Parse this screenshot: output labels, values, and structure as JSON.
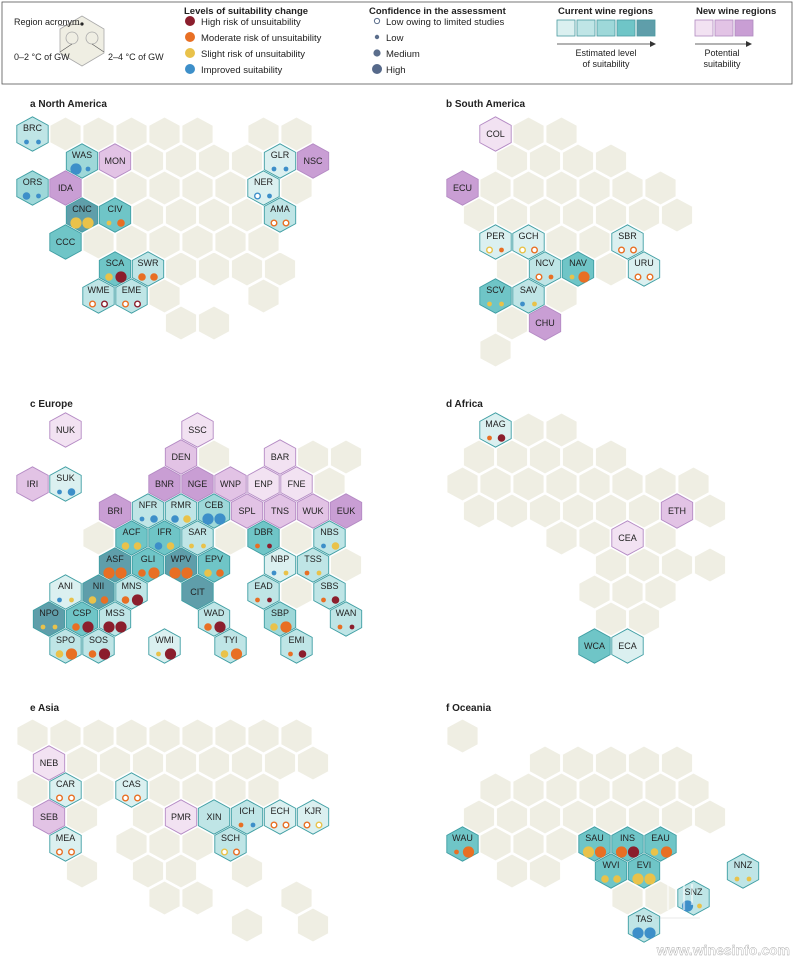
{
  "legend": {
    "region_acronym": "Region acronym",
    "gw_low": "0–2 °C of GW",
    "gw_high": "2–4 °C of GW",
    "suitability_title": "Levels of suitability change",
    "suitability_items": [
      {
        "label": "High risk of unsuitability",
        "color": "#8b1e2d"
      },
      {
        "label": "Moderate risk of unsuitability",
        "color": "#e86f24"
      },
      {
        "label": "Slight risk of unsuitability",
        "color": "#e9c24a"
      },
      {
        "label": "Improved suitability",
        "color": "#3d8fc9"
      }
    ],
    "confidence_title": "Confidence in the assessment",
    "confidence_items": [
      {
        "label": "Low owing to limited studies"
      },
      {
        "label": "Low"
      },
      {
        "label": "Medium"
      },
      {
        "label": "High"
      }
    ],
    "current_title": "Current wine regions",
    "current_caption": "Estimated level of suitability",
    "new_title": "New wine regions",
    "new_caption": "Potential suitability"
  },
  "colors": {
    "background_hex": "#efeee3",
    "current_levels": [
      "#dbf0f0",
      "#bfe5e6",
      "#9ed8d9",
      "#6fc5c7",
      "#5f9eaa"
    ],
    "new_levels": [
      "#f2e2f2",
      "#e2c3e5",
      "#c99ed4"
    ]
  },
  "panels": [
    {
      "letter": "a",
      "title": "North America"
    },
    {
      "letter": "b",
      "title": "South America"
    },
    {
      "letter": "c",
      "title": "Europe"
    },
    {
      "letter": "d",
      "title": "Africa"
    },
    {
      "letter": "e",
      "title": "Asia"
    },
    {
      "letter": "f",
      "title": "Oceania"
    }
  ],
  "regions": [
    {
      "panel": 0,
      "code": "BRC",
      "level": "c2",
      "d1": "blue",
      "d2": "blue",
      "c1": "low",
      "c2": "low"
    },
    {
      "panel": 0,
      "code": "WAS",
      "level": "c3",
      "d1": "blue",
      "d2": "blue",
      "c1": "high",
      "c2": "low"
    },
    {
      "panel": 0,
      "code": "MON",
      "level": "n2"
    },
    {
      "panel": 0,
      "code": "ORS",
      "level": "c3",
      "d1": "blue",
      "d2": "blue",
      "c1": "medium",
      "c2": "low"
    },
    {
      "panel": 0,
      "code": "IDA",
      "level": "n3"
    },
    {
      "panel": 0,
      "code": "CNC",
      "level": "c5",
      "d1": "yellow",
      "d2": "yellow",
      "c1": "high",
      "c2": "high"
    },
    {
      "panel": 0,
      "code": "CIV",
      "level": "c4",
      "d1": "yellow",
      "d2": "orange",
      "c1": "low",
      "c2": "medium"
    },
    {
      "panel": 0,
      "code": "CCC",
      "level": "c4"
    },
    {
      "panel": 0,
      "code": "SCA",
      "level": "c4",
      "d1": "yellow",
      "d2": "darkred",
      "c1": "medium",
      "c2": "high"
    },
    {
      "panel": 0,
      "code": "SWR",
      "level": "c2",
      "d1": "orange",
      "d2": "orange",
      "c1": "medium",
      "c2": "medium"
    },
    {
      "panel": 0,
      "code": "WME",
      "level": "c2",
      "d1": "orange",
      "d2": "darkred",
      "c1": "lim",
      "c2": "lim"
    },
    {
      "panel": 0,
      "code": "EME",
      "level": "c2",
      "d1": "orange",
      "d2": "darkred",
      "c1": "lim",
      "c2": "lim"
    },
    {
      "panel": 0,
      "code": "GLR",
      "level": "c1",
      "d1": "blue",
      "d2": "blue",
      "c1": "low",
      "c2": "low"
    },
    {
      "panel": 0,
      "code": "NSC",
      "level": "n3"
    },
    {
      "panel": 0,
      "code": "NER",
      "level": "c1",
      "d1": "blue",
      "d2": "blue",
      "c1": "lim",
      "c2": "low"
    },
    {
      "panel": 0,
      "code": "AMA",
      "level": "c2",
      "d1": "orange",
      "d2": "orange",
      "c1": "lim",
      "c2": "lim"
    },
    {
      "panel": 1,
      "code": "COL",
      "level": "n1"
    },
    {
      "panel": 1,
      "code": "ECU",
      "level": "n3"
    },
    {
      "panel": 1,
      "code": "PER",
      "level": "c1",
      "d1": "yellow",
      "d2": "orange",
      "c1": "lim",
      "c2": "low"
    },
    {
      "panel": 1,
      "code": "GCH",
      "level": "c1",
      "d1": "yellow",
      "d2": "orange",
      "c1": "lim",
      "c2": "lim"
    },
    {
      "panel": 1,
      "code": "SBR",
      "level": "c1",
      "d1": "orange",
      "d2": "orange",
      "c1": "lim",
      "c2": "lim"
    },
    {
      "panel": 1,
      "code": "NCV",
      "level": "c2",
      "d1": "orange",
      "d2": "orange",
      "c1": "lim",
      "c2": "low"
    },
    {
      "panel": 1,
      "code": "NAV",
      "level": "c4",
      "d1": "yellow",
      "d2": "orange",
      "c1": "low",
      "c2": "high"
    },
    {
      "panel": 1,
      "code": "URU",
      "level": "c1",
      "d1": "orange",
      "d2": "orange",
      "c1": "lim",
      "c2": "lim"
    },
    {
      "panel": 1,
      "code": "SCV",
      "level": "c4",
      "d1": "yellow",
      "d2": "yellow",
      "c1": "low",
      "c2": "low"
    },
    {
      "panel": 1,
      "code": "SAV",
      "level": "c2",
      "d1": "blue",
      "d2": "yellow",
      "c1": "low",
      "c2": "low"
    },
    {
      "panel": 1,
      "code": "CHU",
      "level": "n3"
    },
    {
      "panel": 2,
      "code": "NUK",
      "level": "n1"
    },
    {
      "panel": 2,
      "code": "SSC",
      "level": "n1"
    },
    {
      "panel": 2,
      "code": "DEN",
      "level": "n2"
    },
    {
      "panel": 2,
      "code": "BAR",
      "level": "n1"
    },
    {
      "panel": 2,
      "code": "IRI",
      "level": "n2"
    },
    {
      "panel": 2,
      "code": "SUK",
      "level": "c1",
      "d1": "blue",
      "d2": "blue",
      "c1": "low",
      "c2": "medium"
    },
    {
      "panel": 2,
      "code": "BNR",
      "level": "n3"
    },
    {
      "panel": 2,
      "code": "NGE",
      "level": "n3"
    },
    {
      "panel": 2,
      "code": "WNP",
      "level": "n2"
    },
    {
      "panel": 2,
      "code": "ENP",
      "level": "n1"
    },
    {
      "panel": 2,
      "code": "FNE",
      "level": "n1"
    },
    {
      "panel": 2,
      "code": "BRI",
      "level": "n3"
    },
    {
      "panel": 2,
      "code": "NFR",
      "level": "c2",
      "d1": "blue",
      "d2": "blue",
      "c1": "low",
      "c2": "medium"
    },
    {
      "panel": 2,
      "code": "RMR",
      "level": "c2",
      "d1": "blue",
      "d2": "yellow",
      "c1": "medium",
      "c2": "medium"
    },
    {
      "panel": 2,
      "code": "CEB",
      "level": "c3",
      "d1": "blue",
      "d2": "blue",
      "c1": "high",
      "c2": "high"
    },
    {
      "panel": 2,
      "code": "SPL",
      "level": "n2"
    },
    {
      "panel": 2,
      "code": "TNS",
      "level": "n2"
    },
    {
      "panel": 2,
      "code": "WUK",
      "level": "n2"
    },
    {
      "panel": 2,
      "code": "EUK",
      "level": "n3"
    },
    {
      "panel": 2,
      "code": "ACF",
      "level": "c4",
      "d1": "yellow",
      "d2": "yellow",
      "c1": "medium",
      "c2": "medium"
    },
    {
      "panel": 2,
      "code": "IFR",
      "level": "c4",
      "d1": "blue",
      "d2": "yellow",
      "c1": "medium",
      "c2": "medium"
    },
    {
      "panel": 2,
      "code": "SAR",
      "level": "c2",
      "d1": "yellow",
      "d2": "yellow",
      "c1": "low",
      "c2": "low"
    },
    {
      "panel": 2,
      "code": "DBR",
      "level": "c4",
      "d1": "orange",
      "d2": "darkred",
      "c1": "low",
      "c2": "low"
    },
    {
      "panel": 2,
      "code": "NBS",
      "level": "c2",
      "d1": "blue",
      "d2": "yellow",
      "c1": "low",
      "c2": "medium"
    },
    {
      "panel": 2,
      "code": "ASF",
      "level": "c5",
      "d1": "orange",
      "d2": "orange",
      "c1": "high",
      "c2": "high"
    },
    {
      "panel": 2,
      "code": "GLI",
      "level": "c4",
      "d1": "orange",
      "d2": "orange",
      "c1": "medium",
      "c2": "high"
    },
    {
      "panel": 2,
      "code": "WPV",
      "level": "c5",
      "d1": "orange",
      "d2": "orange",
      "c1": "high",
      "c2": "high"
    },
    {
      "panel": 2,
      "code": "EPV",
      "level": "c4",
      "d1": "yellow",
      "d2": "orange",
      "c1": "medium",
      "c2": "medium"
    },
    {
      "panel": 2,
      "code": "NBP",
      "level": "c1",
      "d1": "blue",
      "d2": "yellow",
      "c1": "low",
      "c2": "low"
    },
    {
      "panel": 2,
      "code": "TSS",
      "level": "c2",
      "d1": "orange",
      "d2": "yellow",
      "c1": "low",
      "c2": "low"
    },
    {
      "panel": 2,
      "code": "ANI",
      "level": "c1",
      "d1": "blue",
      "d2": "yellow",
      "c1": "low",
      "c2": "low"
    },
    {
      "panel": 2,
      "code": "NII",
      "level": "c5",
      "d1": "yellow",
      "d2": "orange",
      "c1": "medium",
      "c2": "medium"
    },
    {
      "panel": 2,
      "code": "MNS",
      "level": "c2",
      "d1": "orange",
      "d2": "darkred",
      "c1": "medium",
      "c2": "high"
    },
    {
      "panel": 2,
      "code": "CIT",
      "level": "c5"
    },
    {
      "panel": 2,
      "code": "EAD",
      "level": "c2",
      "d1": "orange",
      "d2": "darkred",
      "c1": "low",
      "c2": "low"
    },
    {
      "panel": 2,
      "code": "SBS",
      "level": "c2",
      "d1": "orange",
      "d2": "darkred",
      "c1": "low",
      "c2": "medium"
    },
    {
      "panel": 2,
      "code": "NPO",
      "level": "c5",
      "d1": "yellow",
      "d2": "yellow",
      "c1": "low",
      "c2": "low"
    },
    {
      "panel": 2,
      "code": "CSP",
      "level": "c4",
      "d1": "orange",
      "d2": "darkred",
      "c1": "medium",
      "c2": "high"
    },
    {
      "panel": 2,
      "code": "MSS",
      "level": "c2",
      "d1": "darkred",
      "d2": "darkred",
      "c1": "high",
      "c2": "high"
    },
    {
      "panel": 2,
      "code": "WAD",
      "level": "c2",
      "d1": "orange",
      "d2": "darkred",
      "c1": "medium",
      "c2": "high"
    },
    {
      "panel": 2,
      "code": "SBP",
      "level": "c3",
      "d1": "yellow",
      "d2": "orange",
      "c1": "medium",
      "c2": "high"
    },
    {
      "panel": 2,
      "code": "WAN",
      "level": "c2",
      "d1": "orange",
      "d2": "darkred",
      "c1": "low",
      "c2": "low"
    },
    {
      "panel": 2,
      "code": "SPO",
      "level": "c2",
      "d1": "yellow",
      "d2": "orange",
      "c1": "medium",
      "c2": "high"
    },
    {
      "panel": 2,
      "code": "SOS",
      "level": "c2",
      "d1": "orange",
      "d2": "darkred",
      "c1": "medium",
      "c2": "high"
    },
    {
      "panel": 2,
      "code": "WMI",
      "level": "c1",
      "d1": "yellow",
      "d2": "darkred",
      "c1": "low",
      "c2": "high"
    },
    {
      "panel": 2,
      "code": "TYI",
      "level": "c2",
      "d1": "yellow",
      "d2": "orange",
      "c1": "medium",
      "c2": "high"
    },
    {
      "panel": 2,
      "code": "EMI",
      "level": "c2",
      "d1": "orange",
      "d2": "darkred",
      "c1": "low",
      "c2": "medium"
    },
    {
      "panel": 3,
      "code": "MAG",
      "level": "c1",
      "d1": "orange",
      "d2": "darkred",
      "c1": "low",
      "c2": "medium"
    },
    {
      "panel": 3,
      "code": "ETH",
      "level": "n2"
    },
    {
      "panel": 3,
      "code": "CEA",
      "level": "n1"
    },
    {
      "panel": 3,
      "code": "WCA",
      "level": "c4"
    },
    {
      "panel": 3,
      "code": "ECA",
      "level": "c1"
    },
    {
      "panel": 4,
      "code": "NEB",
      "level": "n1"
    },
    {
      "panel": 4,
      "code": "CAR",
      "level": "c1",
      "d1": "orange",
      "d2": "orange",
      "c1": "lim",
      "c2": "lim"
    },
    {
      "panel": 4,
      "code": "CAS",
      "level": "c1",
      "d1": "orange",
      "d2": "orange",
      "c1": "lim",
      "c2": "lim"
    },
    {
      "panel": 4,
      "code": "SEB",
      "level": "n2"
    },
    {
      "panel": 4,
      "code": "PMR",
      "level": "n1"
    },
    {
      "panel": 4,
      "code": "XIN",
      "level": "c2"
    },
    {
      "panel": 4,
      "code": "ICH",
      "level": "c2",
      "d1": "orange",
      "d2": "blue",
      "c1": "low",
      "c2": "low"
    },
    {
      "panel": 4,
      "code": "ECH",
      "level": "c1",
      "d1": "orange",
      "d2": "orange",
      "c1": "lim",
      "c2": "lim"
    },
    {
      "panel": 4,
      "code": "KJR",
      "level": "c1",
      "d1": "orange",
      "d2": "yellow",
      "c1": "lim",
      "c2": "lim"
    },
    {
      "panel": 4,
      "code": "MEA",
      "level": "c1",
      "d1": "orange",
      "d2": "orange",
      "c1": "lim",
      "c2": "lim"
    },
    {
      "panel": 4,
      "code": "SCH",
      "level": "c2",
      "d1": "yellow",
      "d2": "orange",
      "c1": "lim",
      "c2": "lim"
    },
    {
      "panel": 5,
      "code": "WAU",
      "level": "c4",
      "d1": "orange",
      "d2": "orange",
      "c1": "low",
      "c2": "high"
    },
    {
      "panel": 5,
      "code": "SAU",
      "level": "c4",
      "d1": "yellow",
      "d2": "orange",
      "c1": "high",
      "c2": "high"
    },
    {
      "panel": 5,
      "code": "INS",
      "level": "c4",
      "d1": "orange",
      "d2": "darkred",
      "c1": "high",
      "c2": "high"
    },
    {
      "panel": 5,
      "code": "EAU",
      "level": "c4",
      "d1": "yellow",
      "d2": "orange",
      "c1": "medium",
      "c2": "high"
    },
    {
      "panel": 5,
      "code": "WVI",
      "level": "c4",
      "d1": "yellow",
      "d2": "yellow",
      "c1": "medium",
      "c2": "medium"
    },
    {
      "panel": 5,
      "code": "EVI",
      "level": "c4",
      "d1": "yellow",
      "d2": "yellow",
      "c1": "high",
      "c2": "high"
    },
    {
      "panel": 5,
      "code": "NNZ",
      "level": "c2",
      "d1": "yellow",
      "d2": "yellow",
      "c1": "low",
      "c2": "low"
    },
    {
      "panel": 5,
      "code": "SNZ",
      "level": "c2",
      "d1": "blue",
      "d2": "yellow",
      "c1": "high",
      "c2": "low"
    },
    {
      "panel": 5,
      "code": "TAS",
      "level": "c2",
      "d1": "blue",
      "d2": "blue",
      "c1": "high",
      "c2": "high"
    }
  ],
  "watermark": "www.winesinfo.com"
}
